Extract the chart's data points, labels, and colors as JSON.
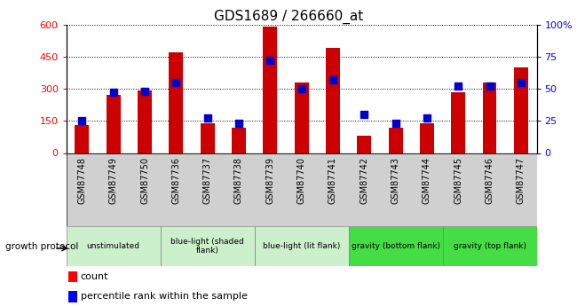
{
  "title": "GDS1689 / 266660_at",
  "samples": [
    "GSM87748",
    "GSM87749",
    "GSM87750",
    "GSM87736",
    "GSM87737",
    "GSM87738",
    "GSM87739",
    "GSM87740",
    "GSM87741",
    "GSM87742",
    "GSM87743",
    "GSM87744",
    "GSM87745",
    "GSM87746",
    "GSM87747"
  ],
  "counts": [
    130,
    270,
    290,
    470,
    140,
    120,
    590,
    330,
    490,
    80,
    120,
    140,
    285,
    330,
    400
  ],
  "percentiles": [
    25,
    47,
    48,
    55,
    27,
    23,
    72,
    50,
    57,
    30,
    23,
    27,
    52,
    52,
    55
  ],
  "group_defs": [
    {
      "label": "unstimulated",
      "start": 0,
      "end": 2,
      "color": "#ccf0cc"
    },
    {
      "label": "blue-light (shaded\nflank)",
      "start": 3,
      "end": 5,
      "color": "#ccf0cc"
    },
    {
      "label": "blue-light (lit flank)",
      "start": 6,
      "end": 8,
      "color": "#ccf0cc"
    },
    {
      "label": "gravity (bottom flank)",
      "start": 9,
      "end": 11,
      "color": "#44dd44"
    },
    {
      "label": "gravity (top flank)",
      "start": 12,
      "end": 14,
      "color": "#44dd44"
    }
  ],
  "ylim_left": [
    0,
    600
  ],
  "ylim_right": [
    0,
    100
  ],
  "yticks_left": [
    0,
    150,
    300,
    450,
    600
  ],
  "yticks_right": [
    0,
    25,
    50,
    75,
    100
  ],
  "bar_color": "#cc0000",
  "dot_color": "#0000cc",
  "plot_bg": "#ffffff",
  "sample_bg": "#d0d0d0",
  "growth_protocol_label": "growth protocol"
}
